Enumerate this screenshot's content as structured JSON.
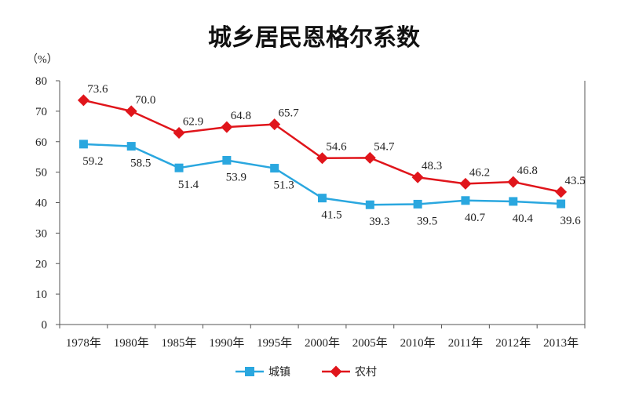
{
  "chart_data": {
    "type": "line",
    "title": "城乡居民恩格尔系数",
    "unit": "（%）",
    "categories": [
      "1978年",
      "1980年",
      "1985年",
      "1990年",
      "1995年",
      "2000年",
      "2005年",
      "2010年",
      "2011年",
      "2012年",
      "2013年"
    ],
    "ylim": [
      0,
      80
    ],
    "yticks": [
      0,
      10,
      20,
      30,
      40,
      50,
      60,
      70,
      80
    ],
    "grid": false,
    "legend_position": "bottom",
    "series": [
      {
        "name": "城镇",
        "color": "#2aa7df",
        "marker": "square",
        "values": [
          59.2,
          58.5,
          51.4,
          53.9,
          51.3,
          41.5,
          39.3,
          39.5,
          40.7,
          40.4,
          39.6
        ],
        "label_position": "below"
      },
      {
        "name": "农村",
        "color": "#e0151b",
        "marker": "diamond",
        "values": [
          73.6,
          70.0,
          62.9,
          64.8,
          65.7,
          54.6,
          54.7,
          48.3,
          46.2,
          46.8,
          43.5
        ],
        "label_position": "above"
      }
    ]
  }
}
